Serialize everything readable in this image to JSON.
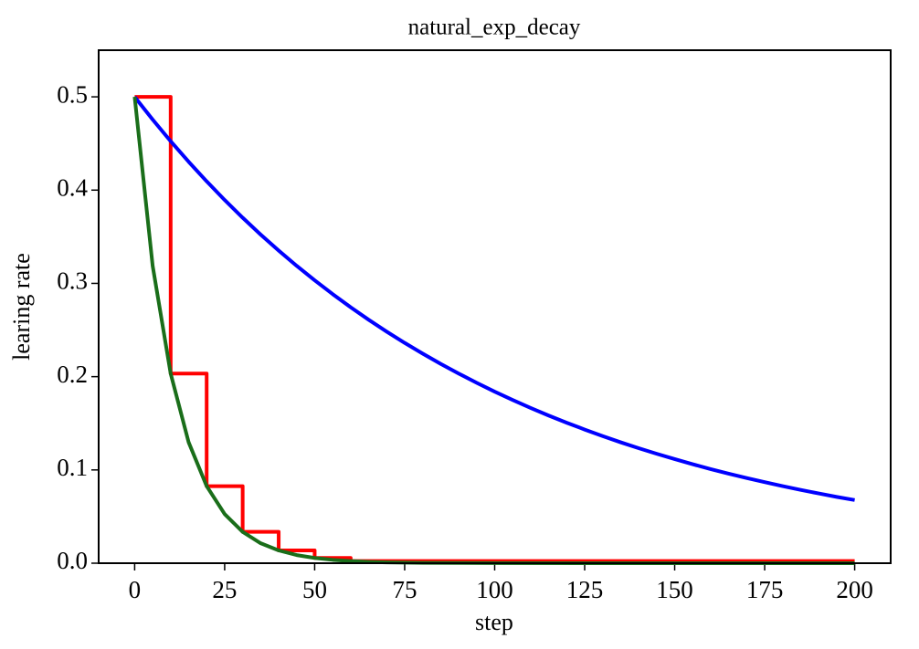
{
  "chart_data": {
    "type": "line",
    "title": "natural_exp_decay",
    "x_label": "step",
    "y_label": "learing rate",
    "xlim": [
      -10,
      210
    ],
    "ylim": [
      0,
      0.55
    ],
    "xticks": [
      0,
      25,
      50,
      75,
      100,
      125,
      150,
      175,
      200
    ],
    "yticks": [
      {
        "value": 0,
        "label": "0.0"
      },
      0.1,
      0.2,
      0.3,
      0.4,
      0.5
    ],
    "grid": false,
    "series": [
      {
        "color": "#ff0000",
        "x": [
          0,
          10,
          10,
          20,
          20,
          30,
          30,
          40,
          40,
          50,
          50,
          60,
          60,
          200
        ],
        "values": [
          0.5,
          0.5,
          0.2033,
          0.2033,
          0.0826,
          0.0826,
          0.0336,
          0.0336,
          0.0137,
          0.0137,
          0.0056,
          0.0056,
          0.0023,
          0.0023
        ]
      },
      {
        "color": "#0000ff",
        "x": [
          0,
          5,
          10,
          15,
          20,
          25,
          30,
          35,
          40,
          45,
          50,
          55,
          60,
          65,
          70,
          75,
          80,
          85,
          90,
          95,
          100,
          105,
          110,
          115,
          120,
          125,
          130,
          135,
          140,
          145,
          150,
          155,
          160,
          165,
          170,
          175,
          180,
          185,
          190,
          195,
          200
        ],
        "values": [
          0.5,
          0.4756,
          0.4524,
          0.4304,
          0.4094,
          0.3894,
          0.3704,
          0.3523,
          0.3352,
          0.3188,
          0.3033,
          0.2885,
          0.2744,
          0.261,
          0.2483,
          0.2362,
          0.2247,
          0.2137,
          0.2033,
          0.1934,
          0.1839,
          0.175,
          0.1664,
          0.1583,
          0.1506,
          0.1433,
          0.1363,
          0.1296,
          0.1233,
          0.1173,
          0.1116,
          0.1061,
          0.1009,
          0.096,
          0.0913,
          0.0869,
          0.0826,
          0.0786,
          0.0748,
          0.0711,
          0.0677
        ]
      },
      {
        "color": "#1a6e1a",
        "x": [
          0,
          5,
          10,
          15,
          20,
          25,
          30,
          35,
          40,
          45,
          50,
          55,
          60,
          65,
          70,
          75,
          80,
          100,
          150,
          200
        ],
        "values": [
          0.5,
          0.3188,
          0.2033,
          0.1296,
          0.0826,
          0.0527,
          0.0336,
          0.0214,
          0.0137,
          0.0087,
          0.0056,
          0.0036,
          0.0023,
          0.0014,
          0.0009,
          0.0006,
          0.0004,
          0.0001,
          0,
          0
        ]
      }
    ]
  }
}
